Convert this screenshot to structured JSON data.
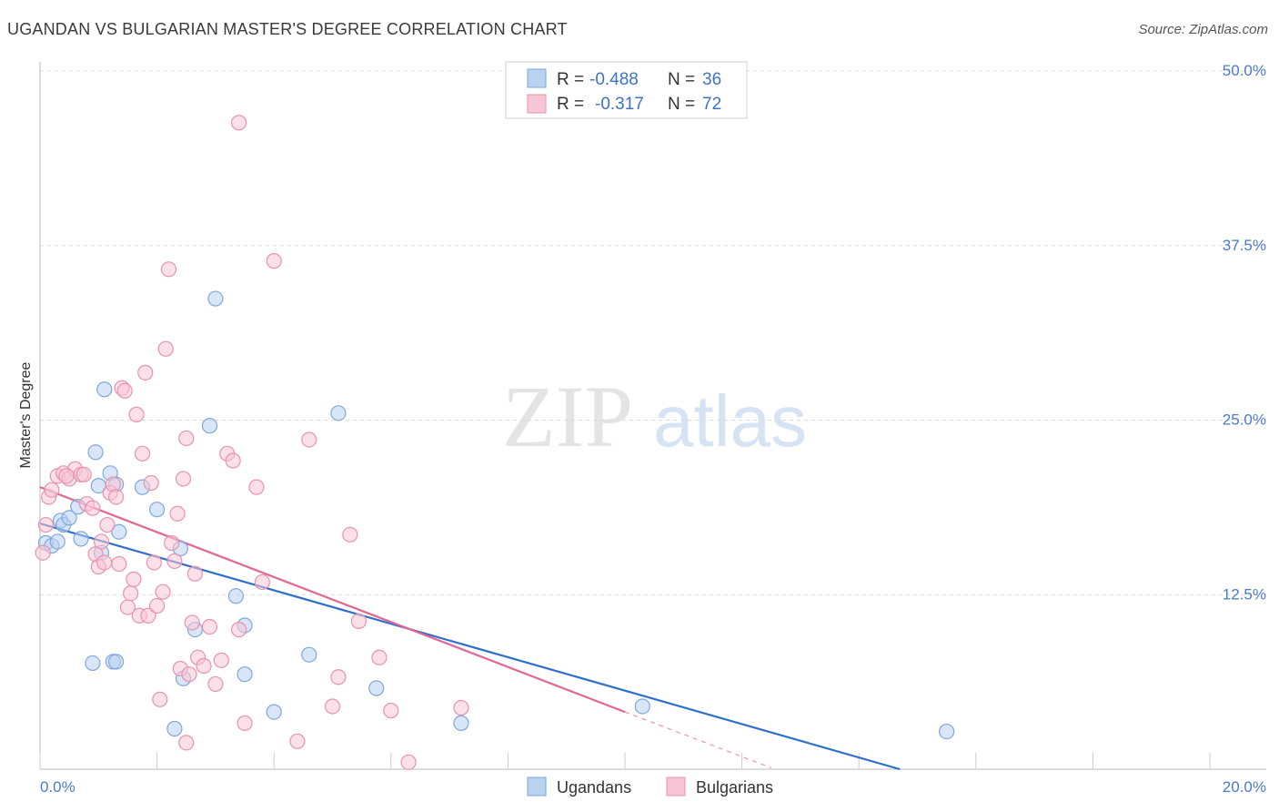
{
  "title": "UGANDAN VS BULGARIAN MASTER'S DEGREE CORRELATION CHART",
  "source": "Source: ZipAtlas.com",
  "watermark": {
    "zip": "ZIP",
    "atlas": "atlas"
  },
  "legend": {
    "r_label": "R =",
    "n_label": "N =",
    "rows": [
      {
        "name": "Ugandans",
        "r": "-0.488",
        "n": "36"
      },
      {
        "name": "Bulgarians",
        "r": "-0.317",
        "n": "72"
      }
    ]
  },
  "colors": {
    "ugandans_fill": "#b9d2f2",
    "ugandans_stroke": "#7fa7dc",
    "ugandans_line": "#2f6fcc",
    "bulgarians_fill": "#f7c6d6",
    "bulgarians_stroke": "#e892ae",
    "bulgarians_line": "#e26592",
    "tick_text": "#4a7cc9",
    "grid": "#dcdcdc"
  },
  "chart_data": {
    "type": "scatter",
    "title": "UGANDAN VS BULGARIAN MASTER'S DEGREE CORRELATION CHART",
    "xlabel": "",
    "ylabel": "Master's Degree",
    "xlim": [
      0,
      20
    ],
    "ylim": [
      0,
      50
    ],
    "x_tick_labels": [
      "0.0%",
      "20.0%"
    ],
    "y_ticks": [
      12.5,
      25.0,
      37.5,
      50.0
    ],
    "y_tick_labels": [
      "12.5%",
      "25.0%",
      "37.5%",
      "50.0%"
    ],
    "grid": true,
    "legend_position": "top-center",
    "series": [
      {
        "name": "Ugandans",
        "r": -0.488,
        "n": 36,
        "trend": {
          "x": [
            0.0,
            14.7
          ],
          "y": [
            17.6,
            0.0
          ]
        },
        "points": [
          [
            0.1,
            16.2
          ],
          [
            0.2,
            16.0
          ],
          [
            0.3,
            16.3
          ],
          [
            0.35,
            17.8
          ],
          [
            0.4,
            17.5
          ],
          [
            0.5,
            18.0
          ],
          [
            0.65,
            18.8
          ],
          [
            0.7,
            16.5
          ],
          [
            0.95,
            22.7
          ],
          [
            1.0,
            20.3
          ],
          [
            1.05,
            15.5
          ],
          [
            1.1,
            27.2
          ],
          [
            1.2,
            21.2
          ],
          [
            1.3,
            20.4
          ],
          [
            1.35,
            17.0
          ],
          [
            1.75,
            20.2
          ],
          [
            2.0,
            18.6
          ],
          [
            2.4,
            15.8
          ],
          [
            3.0,
            33.7
          ],
          [
            2.9,
            24.6
          ],
          [
            3.35,
            12.4
          ],
          [
            3.5,
            10.3
          ],
          [
            5.1,
            25.5
          ],
          [
            3.5,
            6.8
          ],
          [
            4.6,
            8.2
          ],
          [
            4.0,
            4.1
          ],
          [
            2.65,
            10.0
          ],
          [
            2.45,
            6.5
          ],
          [
            2.3,
            2.9
          ],
          [
            1.25,
            7.7
          ],
          [
            1.3,
            7.7
          ],
          [
            0.9,
            7.6
          ],
          [
            5.75,
            5.8
          ],
          [
            7.2,
            3.3
          ],
          [
            10.3,
            4.5
          ],
          [
            15.5,
            2.7
          ]
        ]
      },
      {
        "name": "Bulgarians",
        "r": -0.317,
        "n": 72,
        "trend": {
          "x": [
            0.0,
            10.0
          ],
          "y": [
            20.2,
            4.1
          ]
        },
        "trend_dashed": {
          "x": [
            10.0,
            12.5
          ],
          "y": [
            4.1,
            0.1
          ]
        },
        "points": [
          [
            0.05,
            15.5
          ],
          [
            0.1,
            17.5
          ],
          [
            0.15,
            19.5
          ],
          [
            0.2,
            20.0
          ],
          [
            0.3,
            21.0
          ],
          [
            0.4,
            21.2
          ],
          [
            0.5,
            20.8
          ],
          [
            0.6,
            21.5
          ],
          [
            0.7,
            21.1
          ],
          [
            0.75,
            21.1
          ],
          [
            0.8,
            19.0
          ],
          [
            0.9,
            18.7
          ],
          [
            0.95,
            15.4
          ],
          [
            1.0,
            14.5
          ],
          [
            1.05,
            16.3
          ],
          [
            1.1,
            14.8
          ],
          [
            1.15,
            17.5
          ],
          [
            1.2,
            19.8
          ],
          [
            1.25,
            20.4
          ],
          [
            1.3,
            19.5
          ],
          [
            1.35,
            14.7
          ],
          [
            1.4,
            27.3
          ],
          [
            1.45,
            27.1
          ],
          [
            1.5,
            11.6
          ],
          [
            1.55,
            12.6
          ],
          [
            1.6,
            13.6
          ],
          [
            1.65,
            25.4
          ],
          [
            1.7,
            11.0
          ],
          [
            1.75,
            22.6
          ],
          [
            1.8,
            28.4
          ],
          [
            1.85,
            11.0
          ],
          [
            1.9,
            20.5
          ],
          [
            1.95,
            14.8
          ],
          [
            2.0,
            11.7
          ],
          [
            2.1,
            12.7
          ],
          [
            2.15,
            30.1
          ],
          [
            2.2,
            35.8
          ],
          [
            2.25,
            16.2
          ],
          [
            2.3,
            14.9
          ],
          [
            2.35,
            18.3
          ],
          [
            2.4,
            7.2
          ],
          [
            2.45,
            20.8
          ],
          [
            2.5,
            23.7
          ],
          [
            2.55,
            6.8
          ],
          [
            2.6,
            10.5
          ],
          [
            2.65,
            14.0
          ],
          [
            2.7,
            8.0
          ],
          [
            2.8,
            7.4
          ],
          [
            2.9,
            10.2
          ],
          [
            3.0,
            6.1
          ],
          [
            3.1,
            7.8
          ],
          [
            3.2,
            22.6
          ],
          [
            3.3,
            22.1
          ],
          [
            3.4,
            10.0
          ],
          [
            3.5,
            3.3
          ],
          [
            3.7,
            20.2
          ],
          [
            3.8,
            13.4
          ],
          [
            4.0,
            36.4
          ],
          [
            4.4,
            2.0
          ],
          [
            4.6,
            23.6
          ],
          [
            5.0,
            4.5
          ],
          [
            5.1,
            6.6
          ],
          [
            5.3,
            16.8
          ],
          [
            5.45,
            10.6
          ],
          [
            5.8,
            8.0
          ],
          [
            6.0,
            4.2
          ],
          [
            6.3,
            0.5
          ],
          [
            7.2,
            4.4
          ],
          [
            3.4,
            46.3
          ],
          [
            2.05,
            5.0
          ],
          [
            2.5,
            1.9
          ],
          [
            0.45,
            21.0
          ]
        ]
      }
    ]
  },
  "bottom_legend": [
    "Ugandans",
    "Bulgarians"
  ]
}
